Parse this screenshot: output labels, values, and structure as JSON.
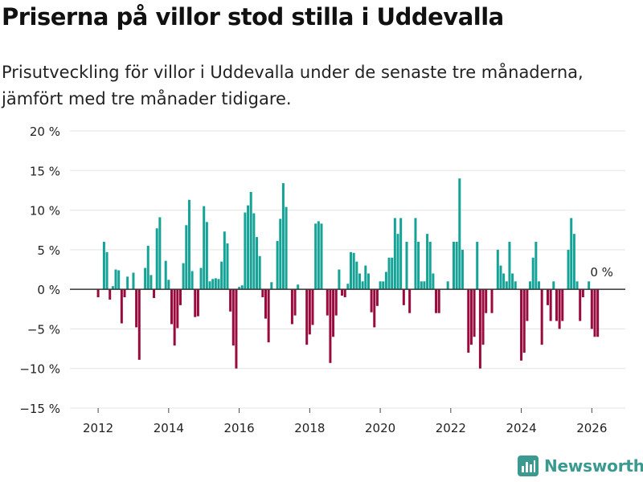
{
  "header": {
    "title": "Priserna på villor stod stilla i Uddevalla",
    "subtitle": "Prisutveckling för villor i Uddevalla under de senaste tre månaderna, jämfört med tre månader tidigare."
  },
  "brand": {
    "name": "Newsworthy",
    "icon": "newsworthy-logo-icon",
    "color": "#3a9a8f"
  },
  "colors": {
    "positive": "#14a396",
    "negative": "#990a3d",
    "zero_line": "#333333",
    "grid": "#e3e3e3"
  },
  "chart_data": {
    "type": "bar",
    "title": "Priserna på villor stod stilla i Uddevalla",
    "xlabel": "",
    "ylabel": "",
    "ylim": [
      -15,
      20
    ],
    "yticks": [
      -15,
      -10,
      -5,
      0,
      5,
      10,
      15,
      20
    ],
    "ytick_labels": [
      "−15 %",
      "−10 %",
      "−5 %",
      "0 %",
      "5 %",
      "10 %",
      "15 %",
      "20 %"
    ],
    "xlim": [
      2011.2,
      2026.95
    ],
    "xticks": [
      2012,
      2014,
      2016,
      2018,
      2020,
      2022,
      2024,
      2026
    ],
    "xtick_labels": [
      "2012",
      "2014",
      "2016",
      "2018",
      "2020",
      "2022",
      "2024",
      "2026"
    ],
    "grid": true,
    "start": [
      2012,
      1
    ],
    "values": [
      -1,
      0,
      6,
      4.7,
      -1.3,
      0.4,
      2.5,
      2.4,
      -4.3,
      -1,
      1.6,
      0,
      2.1,
      -4.8,
      -8.9,
      0,
      2.7,
      5.5,
      1.8,
      -1.1,
      7.7,
      9.1,
      0,
      3.6,
      1.2,
      -4.4,
      -7.1,
      -4.9,
      -2,
      3.3,
      8.1,
      11.3,
      2.3,
      -3.5,
      -3.4,
      2.7,
      10.5,
      8.5,
      1,
      1.3,
      1.4,
      1.3,
      3.5,
      7.3,
      5.8,
      -2.8,
      -7.1,
      -10,
      0.3,
      0.5,
      9.7,
      10.6,
      12.3,
      9.6,
      6.6,
      4.2,
      -1,
      -3.7,
      -6.7,
      0.9,
      0,
      6.1,
      8.9,
      13.4,
      10.4,
      0,
      -4.4,
      -3.3,
      0.6,
      0,
      0,
      -7,
      -5.7,
      -4.5,
      8.3,
      8.6,
      8.3,
      0,
      -3.3,
      -9.3,
      -6,
      -3.3,
      2.5,
      -0.8,
      -1,
      0.7,
      4.7,
      4.6,
      3.5,
      2,
      1,
      3,
      2,
      -2.9,
      -4.8,
      -2.1,
      1,
      1,
      2.2,
      4,
      4,
      9,
      7,
      9,
      -2,
      6,
      -3,
      0,
      9,
      6,
      1,
      1,
      7,
      6,
      2,
      -3,
      -3,
      0,
      0,
      1,
      0,
      6,
      6,
      14,
      5,
      0,
      -8,
      -7,
      -6,
      6,
      -10,
      -7,
      -3,
      0,
      -3,
      0,
      5,
      3,
      2,
      1,
      6,
      2,
      1,
      0,
      -9,
      -8,
      -4,
      1,
      4,
      6,
      1,
      -7,
      0,
      -2,
      -4,
      1,
      -4,
      -5,
      -4,
      0,
      5,
      9,
      7,
      1,
      -4,
      -1,
      0,
      1,
      -5,
      -6,
      -6,
      0
    ],
    "annotations": [
      {
        "text": "0 %",
        "x_month": "2026-01",
        "y": 0
      }
    ]
  }
}
